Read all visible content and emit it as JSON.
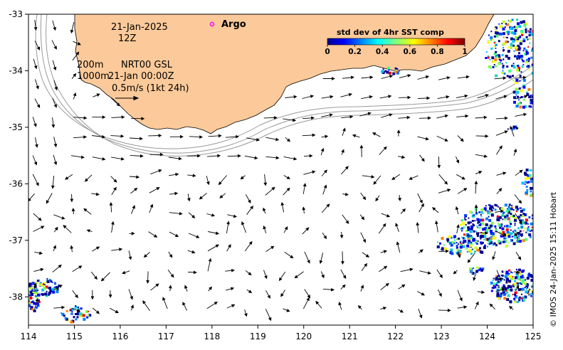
{
  "map": {
    "lon_range": [
      114,
      125
    ],
    "lat_range": [
      -38.5,
      -33
    ],
    "x_ticks": [
      "114",
      "115",
      "116",
      "117",
      "118",
      "119",
      "120",
      "121",
      "122",
      "123",
      "124",
      "125"
    ],
    "y_ticks": [
      "-33",
      "-34",
      "-35",
      "-36",
      "-37",
      "-38"
    ],
    "land_color": "#fcca9a",
    "depth_contours": [
      "200m",
      "1000m"
    ]
  },
  "annotations": {
    "date_line1": "21-Jan-2025",
    "date_line2": "12Z",
    "contour_200": "200m",
    "contour_1000": "1000m",
    "product": "NRT00 GSL",
    "valid_time": "21-Jan 00:00Z",
    "scale_text": "0.5m/s (1kt 24h)"
  },
  "legend": {
    "argo_label": "Argo",
    "argo_color": "#ff00ff"
  },
  "colorbar": {
    "title": "std dev of 4hr SST comp",
    "ticks": [
      "0",
      "0.2",
      "0.4",
      "0.6",
      "0.8",
      "1"
    ]
  },
  "credit": "© IMOS 24-Jan-2025 15:11 Hobart"
}
